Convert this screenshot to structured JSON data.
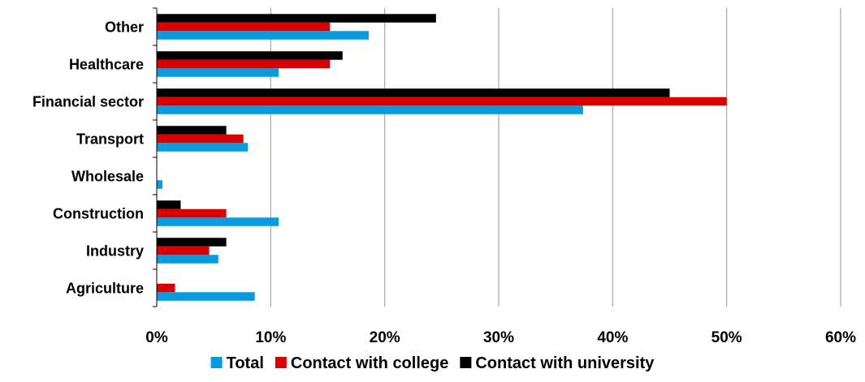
{
  "chart_data": {
    "type": "bar",
    "orientation": "horizontal",
    "title": "",
    "xlabel": "",
    "ylabel": "",
    "categories": [
      "Agriculture",
      "Industry",
      "Construction",
      "Wholesale",
      "Transport",
      "Financial sector",
      "Healthcare",
      "Other"
    ],
    "series": [
      {
        "name": "Total",
        "color": "#0A9AE0",
        "values": [
          8.6,
          5.4,
          10.7,
          0.5,
          8.0,
          37.4,
          10.7,
          18.6
        ]
      },
      {
        "name": "Contact with college",
        "color": "#D90000",
        "values": [
          1.6,
          4.6,
          6.1,
          0.0,
          7.6,
          50.0,
          15.2,
          15.2
        ]
      },
      {
        "name": "Contact with university",
        "color": "#000000",
        "values": [
          0.0,
          6.1,
          2.1,
          0.0,
          6.1,
          45.0,
          16.3,
          24.5
        ]
      }
    ],
    "xlim": [
      0,
      60
    ],
    "xticks": [
      0,
      10,
      20,
      30,
      40,
      50,
      60
    ],
    "tick_suffix": "%",
    "grid": "vertical",
    "grid_color": "#A6A6A6",
    "legend_position": "bottom"
  }
}
